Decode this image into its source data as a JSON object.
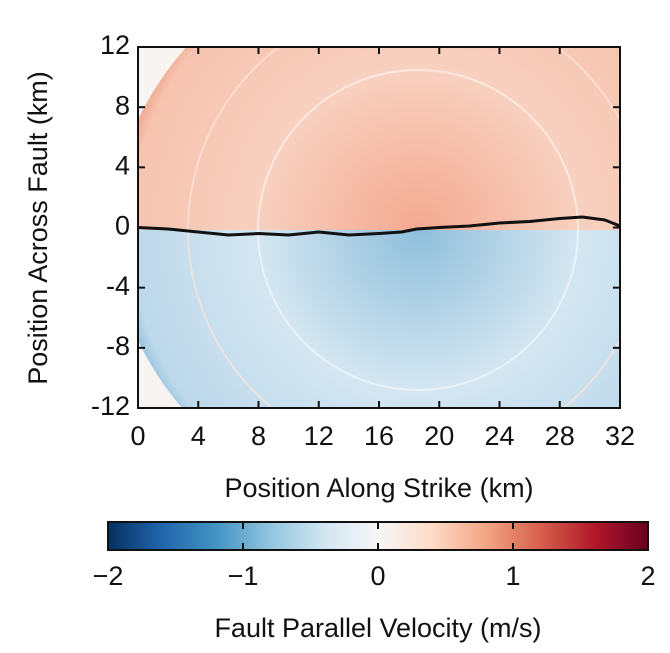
{
  "chart_data": {
    "type": "heatmap",
    "x_label": "Position Along Strike (km)",
    "y_label": "Position Across Fault (km)",
    "xlim": [
      0,
      32
    ],
    "xticks": [
      0,
      4,
      8,
      12,
      16,
      20,
      24,
      28,
      32
    ],
    "ylim": [
      -12,
      12
    ],
    "yticks": [
      -12,
      -8,
      -4,
      0,
      4,
      8,
      12
    ],
    "series": [
      {
        "type": "line",
        "color": "#111111",
        "x": [
          0,
          2,
          4,
          6,
          8,
          10,
          12,
          14,
          16,
          17.5,
          18.5,
          20,
          22,
          24,
          26,
          28,
          29.5,
          31,
          32
        ],
        "values": [
          0,
          -0.1,
          -0.3,
          -0.5,
          -0.4,
          -0.5,
          -0.3,
          -0.5,
          -0.4,
          -0.3,
          -0.1,
          0,
          0.1,
          0.3,
          0.4,
          0.6,
          0.7,
          0.5,
          0.1
        ]
      }
    ],
    "colorbar": {
      "label": "Fault Parallel Velocity (m/s)",
      "lim": [
        -2,
        2
      ],
      "ticks": [
        {
          "value": -2,
          "label": "−2"
        },
        {
          "value": -1,
          "label": "−1"
        },
        0,
        1,
        2
      ]
    }
  }
}
